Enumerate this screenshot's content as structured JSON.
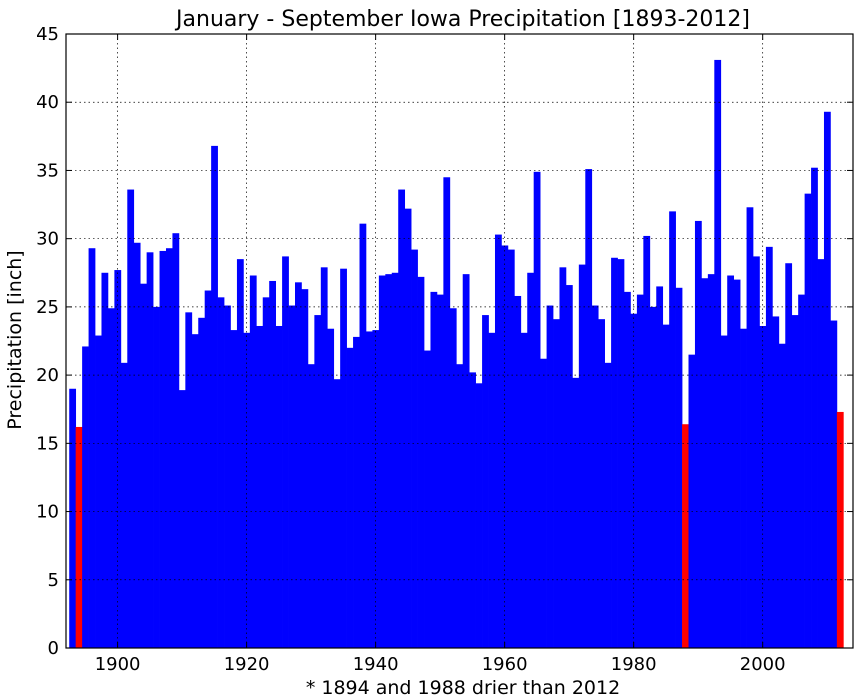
{
  "chart_data": {
    "type": "bar",
    "title": "January - September Iowa Precipitation [1893-2012]",
    "xlabel": "* 1894 and 1988 drier than 2012",
    "ylabel": "Precipitation [inch]",
    "xlim": [
      1892,
      2014
    ],
    "ylim": [
      0,
      45
    ],
    "xticks": [
      1900,
      1920,
      1940,
      1960,
      1980,
      2000
    ],
    "yticks": [
      0,
      5,
      10,
      15,
      20,
      25,
      30,
      35,
      40,
      45
    ],
    "grid": true,
    "bar_color": "#0000ff",
    "highlight_color": "#ff0000",
    "highlight_years": [
      1894,
      1988,
      2012
    ],
    "x": [
      1893,
      1894,
      1895,
      1896,
      1897,
      1898,
      1899,
      1900,
      1901,
      1902,
      1903,
      1904,
      1905,
      1906,
      1907,
      1908,
      1909,
      1910,
      1911,
      1912,
      1913,
      1914,
      1915,
      1916,
      1917,
      1918,
      1919,
      1920,
      1921,
      1922,
      1923,
      1924,
      1925,
      1926,
      1927,
      1928,
      1929,
      1930,
      1931,
      1932,
      1933,
      1934,
      1935,
      1936,
      1937,
      1938,
      1939,
      1940,
      1941,
      1942,
      1943,
      1944,
      1945,
      1946,
      1947,
      1948,
      1949,
      1950,
      1951,
      1952,
      1953,
      1954,
      1955,
      1956,
      1957,
      1958,
      1959,
      1960,
      1961,
      1962,
      1963,
      1964,
      1965,
      1966,
      1967,
      1968,
      1969,
      1970,
      1971,
      1972,
      1973,
      1974,
      1975,
      1976,
      1977,
      1978,
      1979,
      1980,
      1981,
      1982,
      1983,
      1984,
      1985,
      1986,
      1987,
      1988,
      1989,
      1990,
      1991,
      1992,
      1993,
      1994,
      1995,
      1996,
      1997,
      1998,
      1999,
      2000,
      2001,
      2002,
      2003,
      2004,
      2005,
      2006,
      2007,
      2008,
      2009,
      2010,
      2011,
      2012
    ],
    "values": [
      19.0,
      16.2,
      22.1,
      29.3,
      22.9,
      27.5,
      24.9,
      27.7,
      20.9,
      33.6,
      29.7,
      26.7,
      29.0,
      25.0,
      29.1,
      29.3,
      30.4,
      18.9,
      24.6,
      23.0,
      24.2,
      26.2,
      36.8,
      25.7,
      25.1,
      23.3,
      28.5,
      23.1,
      27.3,
      23.6,
      25.7,
      26.9,
      23.6,
      28.7,
      25.1,
      26.8,
      26.3,
      20.8,
      24.4,
      27.9,
      23.4,
      19.7,
      27.8,
      22.0,
      22.8,
      31.1,
      23.2,
      23.3,
      27.3,
      27.4,
      27.5,
      33.6,
      32.2,
      29.2,
      27.2,
      21.8,
      26.1,
      25.9,
      34.5,
      24.9,
      20.8,
      27.4,
      20.2,
      19.4,
      24.4,
      23.1,
      30.3,
      29.5,
      29.2,
      25.8,
      23.1,
      27.5,
      34.9,
      21.2,
      25.1,
      24.1,
      27.9,
      26.6,
      19.8,
      28.1,
      35.1,
      25.1,
      24.1,
      20.9,
      28.6,
      28.5,
      26.1,
      24.5,
      25.9,
      30.2,
      25.0,
      26.5,
      23.7,
      32.0,
      26.4,
      16.4,
      21.5,
      31.3,
      27.1,
      27.4,
      43.1,
      22.9,
      27.3,
      27.0,
      23.4,
      32.3,
      28.7,
      23.6,
      29.4,
      24.3,
      22.3,
      28.2,
      24.4,
      25.9,
      33.3,
      35.2,
      28.5,
      39.3,
      24.0,
      17.3
    ]
  }
}
